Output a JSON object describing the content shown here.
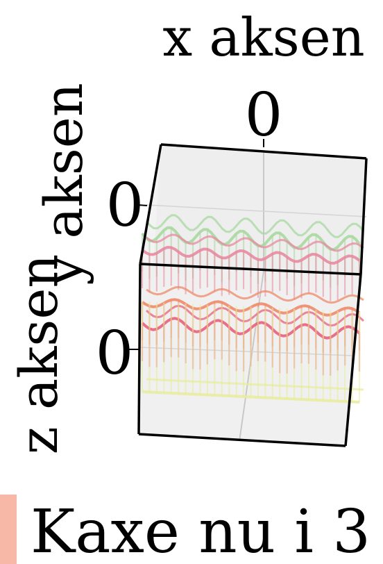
{
  "chart_data": {
    "type": "3d-surface",
    "xlabel": "x aksen",
    "ylabel": "y aksen",
    "zlabel": "z aksen",
    "x_ticks": [
      "0"
    ],
    "y_ticks": [
      "0"
    ],
    "z_ticks": [
      "0"
    ],
    "legend": [
      "Kaxe nu i 3"
    ],
    "grid": true,
    "layers": [
      {
        "color": "#a8d8a0",
        "level": 0.88,
        "amplitude": 0.035,
        "waves": 6
      },
      {
        "color": "#e88aa0",
        "level": 0.8,
        "amplitude": 0.02,
        "waves": 6
      },
      {
        "color": "#f08a6a",
        "level": 0.55,
        "amplitude": 0.02,
        "waves": 5
      },
      {
        "color": "#e8607a",
        "level": 0.45,
        "amplitude": 0.03,
        "waves": 5
      },
      {
        "color": "#e8eca0",
        "level": 0.12,
        "amplitude": 0.0,
        "waves": 0
      }
    ],
    "colors": {
      "pane": "#eeeeee",
      "frame": "#000000",
      "grid": "#c8c8c8",
      "legend_swatch": "#f8b8a8"
    }
  }
}
